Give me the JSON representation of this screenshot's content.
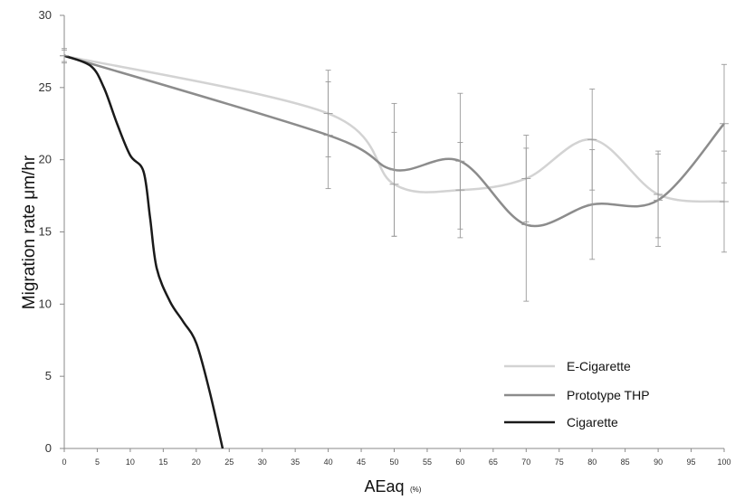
{
  "chart_data": {
    "type": "line",
    "xlabel": "AEaq",
    "xlabel_unit": "(%)",
    "ylabel": "Migration rate μm/hr",
    "xlim": [
      0,
      100
    ],
    "ylim": [
      0,
      30
    ],
    "x_ticks": [
      0,
      5,
      10,
      15,
      20,
      25,
      30,
      35,
      40,
      45,
      50,
      55,
      60,
      65,
      70,
      75,
      80,
      85,
      90,
      95,
      100
    ],
    "y_ticks": [
      0,
      5,
      10,
      15,
      20,
      25,
      30
    ],
    "x_tick_labels": [
      "0",
      "5",
      "10",
      "15",
      "20",
      "25",
      "30",
      "35",
      "40",
      "45",
      "50",
      "55",
      "60",
      "65",
      "70",
      "75",
      "80",
      "85",
      "90",
      "95",
      "100"
    ],
    "y_tick_labels": [
      "0",
      "5",
      "10",
      "15",
      "20",
      "25",
      "30"
    ],
    "grid": false,
    "legend_position": "bottom-right",
    "series": [
      {
        "name": "E-Cigarette",
        "color": "#d3d3d3",
        "x": [
          0,
          40,
          50,
          60,
          70,
          80,
          90,
          100
        ],
        "y": [
          27.2,
          23.2,
          18.3,
          17.9,
          18.7,
          21.4,
          17.6,
          17.1
        ],
        "error": [
          0.5,
          3.0,
          3.6,
          3.3,
          3.0,
          3.5,
          3.0,
          3.5
        ]
      },
      {
        "name": "Prototype THP",
        "color": "#8c8c8c",
        "x": [
          0,
          40,
          50,
          60,
          70,
          80,
          90,
          100
        ],
        "y": [
          27.2,
          21.7,
          19.3,
          19.9,
          15.5,
          16.9,
          17.2,
          22.5
        ],
        "error": [
          0.4,
          3.7,
          4.6,
          4.7,
          5.3,
          3.8,
          3.2,
          4.1
        ]
      },
      {
        "name": "Cigarette",
        "color": "#1a1a1a",
        "x": [
          0,
          4,
          6,
          8,
          10,
          12,
          13,
          14,
          16,
          18,
          20,
          22,
          24
        ],
        "y": [
          27.2,
          26.5,
          25.0,
          22.5,
          20.3,
          19.2,
          16.0,
          12.5,
          10.2,
          8.8,
          7.3,
          4.0,
          0
        ],
        "error": []
      }
    ]
  }
}
